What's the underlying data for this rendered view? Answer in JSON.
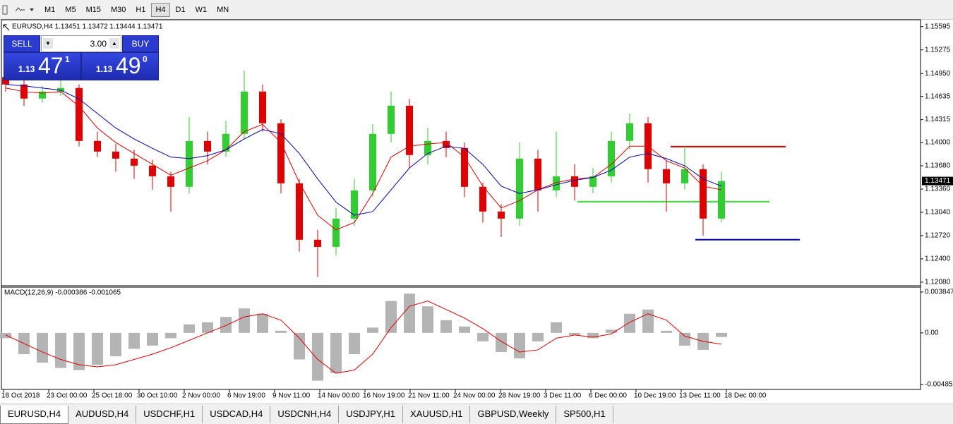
{
  "toolbar": {
    "timeframes": [
      "M1",
      "M5",
      "M15",
      "M30",
      "H1",
      "H4",
      "D1",
      "W1",
      "MN"
    ],
    "selected": 5
  },
  "trade_panel": {
    "sell": "SELL",
    "buy": "BUY",
    "volume": "3.00",
    "sell_price": {
      "big": "1.13",
      "pips": "47",
      "point": "1"
    },
    "buy_price": {
      "big": "1.13",
      "pips": "49",
      "point": "0"
    }
  },
  "tabs": [
    "EURUSD,H4",
    "AUDUSD,H4",
    "USDCHF,H1",
    "USDCAD,H4",
    "USDCNH,H4",
    "USDJPY,H1",
    "XAUUSD,H1",
    "GBPUSD,Weekly",
    "SP500,H1"
  ],
  "chart_data": [
    {
      "type": "candlestick",
      "title": "EURUSD,H4  1.13451 1.13472 1.13444 1.13471",
      "up_color": "#32cd32",
      "down_color": "#e00000",
      "ohlc": [
        [
          1.149,
          1.15,
          1.147,
          1.14799
        ],
        [
          1.14799,
          1.149,
          1.145,
          1.14605
        ],
        [
          1.14605,
          1.1478,
          1.1455,
          1.14702
        ],
        [
          1.14702,
          1.1486,
          1.1464,
          1.1475
        ],
        [
          1.1475,
          1.148,
          1.1395,
          1.14022
        ],
        [
          1.14022,
          1.1415,
          1.138,
          1.13876
        ],
        [
          1.13876,
          1.1398,
          1.136,
          1.13779
        ],
        [
          1.13779,
          1.139,
          1.135,
          1.13682
        ],
        [
          1.13682,
          1.1376,
          1.1335,
          1.13536
        ],
        [
          1.13536,
          1.136,
          1.1305,
          1.13391
        ],
        [
          1.13391,
          1.1435,
          1.133,
          1.14022
        ],
        [
          1.14022,
          1.1415,
          1.137,
          1.13876
        ],
        [
          1.13876,
          1.143,
          1.138,
          1.14119
        ],
        [
          1.14119,
          1.1499,
          1.1405,
          1.14702
        ],
        [
          1.14702,
          1.148,
          1.1415,
          1.14265
        ],
        [
          1.14265,
          1.1432,
          1.133,
          1.13439
        ],
        [
          1.13439,
          1.135,
          1.125,
          1.12663
        ],
        [
          1.12663,
          1.128,
          1.1215,
          1.12565
        ],
        [
          1.12565,
          1.131,
          1.1245,
          1.12954
        ],
        [
          1.12954,
          1.135,
          1.1285,
          1.13342
        ],
        [
          1.13342,
          1.1425,
          1.1325,
          1.14119
        ],
        [
          1.14119,
          1.147,
          1.14,
          1.14507
        ],
        [
          1.14507,
          1.146,
          1.1365,
          1.13828
        ],
        [
          1.13828,
          1.142,
          1.137,
          1.14022
        ],
        [
          1.14022,
          1.1415,
          1.138,
          1.13925
        ],
        [
          1.13925,
          1.14,
          1.1325,
          1.13391
        ],
        [
          1.13391,
          1.1345,
          1.129,
          1.13051
        ],
        [
          1.13051,
          1.1315,
          1.127,
          1.12954
        ],
        [
          1.12954,
          1.14,
          1.1285,
          1.13779
        ],
        [
          1.13779,
          1.139,
          1.1305,
          1.13342
        ],
        [
          1.13342,
          1.1415,
          1.1325,
          1.13536
        ],
        [
          1.13536,
          1.137,
          1.132,
          1.13391
        ],
        [
          1.13391,
          1.1365,
          1.133,
          1.13536
        ],
        [
          1.13536,
          1.1415,
          1.1345,
          1.14022
        ],
        [
          1.14022,
          1.144,
          1.139,
          1.14265
        ],
        [
          1.14265,
          1.1435,
          1.1345,
          1.13634
        ],
        [
          1.13634,
          1.1375,
          1.1305,
          1.13439
        ],
        [
          1.13439,
          1.1395,
          1.1335,
          1.13634
        ],
        [
          1.13634,
          1.137,
          1.1272,
          1.12954
        ],
        [
          1.12954,
          1.136,
          1.129,
          1.13471
        ]
      ],
      "lines": [
        {
          "color": "#e00000",
          "values": [
            1.1475,
            1.147,
            1.1468,
            1.147,
            1.145,
            1.142,
            1.14,
            1.1385,
            1.137,
            1.1355,
            1.1365,
            1.1375,
            1.139,
            1.1415,
            1.1425,
            1.14,
            1.1345,
            1.13,
            1.128,
            1.129,
            1.133,
            1.138,
            1.1395,
            1.1398,
            1.14,
            1.138,
            1.134,
            1.131,
            1.132,
            1.1335,
            1.1345,
            1.135,
            1.1352,
            1.137,
            1.1395,
            1.1395,
            1.1375,
            1.1365,
            1.134,
            1.1335
          ]
        },
        {
          "color": "#0000b0",
          "values": [
            1.148,
            1.1478,
            1.1475,
            1.1472,
            1.146,
            1.144,
            1.142,
            1.1405,
            1.1392,
            1.138,
            1.1378,
            1.1382,
            1.139,
            1.1405,
            1.1418,
            1.1412,
            1.1385,
            1.135,
            1.1318,
            1.13,
            1.1305,
            1.1335,
            1.1365,
            1.1385,
            1.1395,
            1.1392,
            1.137,
            1.134,
            1.133,
            1.1335,
            1.1342,
            1.1348,
            1.1352,
            1.1362,
            1.138,
            1.1385,
            1.1378,
            1.1368,
            1.135,
            1.134
          ]
        }
      ],
      "levels": [
        {
          "color": "#e00000",
          "value": 1.13944
        },
        {
          "color": "#32e632",
          "value": 1.13187
        },
        {
          "color": "#0000c8",
          "value": 1.12663
        }
      ],
      "last_price": 1.13471,
      "ylim": [
        1.1204,
        1.1567
      ],
      "yticks": [
        1.15595,
        1.15275,
        {
          "value": 1.1495,
          "label": "1.14950"
        },
        1.14635,
        1.14315,
        {
          "value": 1.14,
          "label": "1.14000"
        },
        {
          "value": 1.1368,
          "label": "1.13680"
        },
        {
          "value": 1.1336,
          "label": "1.13360"
        },
        {
          "value": 1.1304,
          "label": "1.13040"
        },
        {
          "value": 1.1272,
          "label": "1.12720"
        },
        {
          "value": 1.124,
          "label": "1.12400"
        },
        {
          "value": 1.1208,
          "label": "1.12080"
        }
      ]
    },
    {
      "type": "macd",
      "title": "MACD(12,26,9) -0.000386 -0.001065",
      "histogram": {
        "color": "#b4b4b4",
        "values": [
          -0.0005,
          -0.002,
          -0.0028,
          -0.0033,
          -0.0035,
          -0.003,
          -0.0022,
          -0.0015,
          -0.0012,
          -0.0005,
          0.0008,
          0.001,
          0.0015,
          0.0023,
          0.0018,
          0.0002,
          -0.0025,
          -0.0045,
          -0.0038,
          -0.002,
          0.0005,
          0.003,
          0.0037,
          0.0025,
          0.0012,
          0.0006,
          -0.0008,
          -0.0018,
          -0.0024,
          -0.0008,
          0.001,
          -0.0002,
          -0.0005,
          0.0003,
          0.0018,
          0.0022,
          0.0002,
          -0.0012,
          -0.0016,
          -0.000386
        ]
      },
      "signal": {
        "color": "#e00000",
        "values": [
          -0.0002,
          -0.001,
          -0.0018,
          -0.0025,
          -0.003,
          -0.0032,
          -0.003,
          -0.0025,
          -0.002,
          -0.0014,
          -0.0007,
          0,
          0.0007,
          0.0015,
          0.0018,
          0.0012,
          -0.0005,
          -0.0025,
          -0.0038,
          -0.0035,
          -0.002,
          0.0005,
          0.0025,
          0.003,
          0.0022,
          0.0014,
          0.0004,
          -0.0008,
          -0.0018,
          -0.0016,
          -0.0005,
          -0.0002,
          -0.0004,
          -0.0001,
          0.001,
          0.0018,
          0.0012,
          -0.0003,
          -0.0008,
          -0.001065
        ]
      },
      "ylim": [
        -0.00519,
        0.00424
      ],
      "yticks": [
        0.003847,
        {
          "value": 0,
          "label": "0.00"
        },
        -0.004856
      ],
      "x_labels": [
        "18 Oct 2018",
        "23 Oct 00:00",
        "25 Oct 18:00",
        "30 Oct 10:00",
        "2 Nov 00:00",
        "6 Nov 19:00",
        "9 Nov 11:00",
        "14 Nov 00:00",
        "16 Nov 19:00",
        "21 Nov 11:00",
        "24 Nov 00:00",
        "28 Nov 19:00",
        "3 Dec 11:00",
        "6 Dec 00:00",
        "10 Dec 19:00",
        "13 Dec 11:00",
        "18 Dec 00:00"
      ]
    }
  ]
}
